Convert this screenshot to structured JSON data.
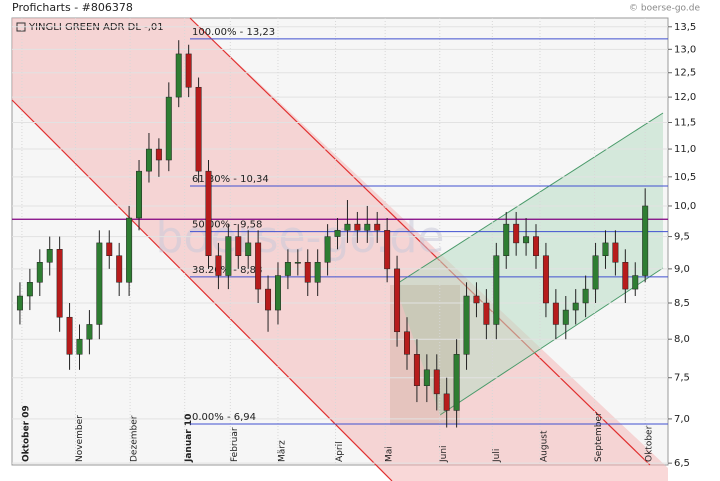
{
  "chart_data": {
    "type": "candlestick",
    "title": "Proficharts - #806378",
    "source": "© boerse-go.de",
    "instrument": "YINGLI GREEN ADR   DL -,01",
    "watermark": "boerse-go.de",
    "log_scale": true,
    "up_color": "#2e7d32",
    "down_color": "#b71c1c",
    "x": [
      0,
      1,
      2,
      3,
      4,
      5,
      6,
      7,
      8,
      9,
      10,
      11,
      12,
      13,
      14,
      15,
      16,
      17,
      18,
      19,
      20,
      21,
      22,
      23,
      24,
      25,
      26,
      27,
      28,
      29,
      30,
      31,
      32,
      33,
      34,
      35,
      36,
      37,
      38,
      39,
      40,
      41,
      42,
      43,
      44,
      45,
      46,
      47,
      48,
      49,
      50,
      51,
      52,
      53,
      54,
      55,
      56,
      57,
      58,
      59,
      60,
      61,
      62,
      63
    ],
    "open": [
      8.4,
      8.6,
      8.8,
      9.1,
      9.3,
      8.3,
      7.8,
      8.0,
      8.2,
      9.4,
      9.2,
      8.8,
      9.8,
      10.6,
      11.0,
      10.8,
      12.0,
      12.9,
      12.2,
      10.6,
      9.2,
      8.9,
      9.5,
      9.2,
      9.4,
      8.7,
      8.4,
      8.9,
      9.1,
      9.1,
      8.8,
      9.1,
      9.5,
      9.6,
      9.7,
      9.6,
      9.7,
      9.6,
      9.0,
      8.1,
      7.8,
      7.4,
      7.6,
      7.3,
      7.1,
      7.8,
      8.6,
      8.5,
      8.2,
      9.2,
      9.7,
      9.4,
      9.5,
      9.2,
      8.5,
      8.2,
      8.4,
      8.5,
      8.7,
      9.2,
      9.4,
      9.1,
      8.7,
      8.9
    ],
    "high": [
      8.8,
      9.0,
      9.3,
      9.5,
      9.5,
      8.5,
      8.2,
      8.4,
      9.6,
      9.6,
      9.4,
      10.0,
      10.8,
      11.3,
      11.2,
      12.3,
      13.2,
      13.1,
      12.4,
      10.8,
      9.4,
      9.7,
      9.7,
      9.6,
      9.6,
      8.9,
      9.1,
      9.3,
      9.3,
      9.3,
      9.3,
      9.7,
      9.8,
      10.1,
      9.9,
      10.0,
      9.9,
      9.8,
      9.2,
      8.3,
      8.0,
      7.8,
      7.8,
      7.5,
      8.0,
      8.8,
      8.8,
      8.7,
      9.4,
      9.9,
      9.9,
      9.8,
      9.7,
      9.4,
      8.7,
      8.6,
      8.7,
      8.9,
      9.4,
      9.6,
      9.6,
      9.3,
      9.1,
      10.3
    ],
    "low": [
      8.2,
      8.4,
      8.6,
      8.9,
      8.1,
      7.6,
      7.6,
      7.8,
      8.0,
      9.0,
      8.6,
      8.6,
      9.6,
      10.4,
      10.5,
      10.6,
      11.8,
      12.0,
      10.4,
      9.0,
      8.7,
      8.7,
      9.0,
      9.0,
      8.5,
      8.1,
      8.2,
      8.7,
      8.9,
      8.6,
      8.6,
      8.9,
      9.3,
      9.4,
      9.4,
      9.4,
      9.4,
      8.8,
      7.9,
      7.6,
      7.2,
      7.2,
      7.1,
      6.9,
      6.9,
      7.6,
      8.3,
      8.0,
      8.0,
      9.0,
      9.2,
      9.2,
      9.0,
      8.3,
      8.0,
      8.0,
      8.2,
      8.3,
      8.5,
      9.0,
      8.9,
      8.5,
      8.6,
      8.8
    ],
    "close": [
      8.6,
      8.8,
      9.1,
      9.3,
      8.3,
      7.8,
      8.0,
      8.2,
      9.4,
      9.2,
      8.8,
      9.8,
      10.6,
      11.0,
      10.8,
      12.0,
      12.9,
      12.2,
      10.6,
      9.2,
      8.9,
      9.5,
      9.2,
      9.4,
      8.7,
      8.4,
      8.9,
      9.1,
      9.1,
      8.8,
      9.1,
      9.5,
      9.6,
      9.7,
      9.6,
      9.7,
      9.6,
      9.0,
      8.1,
      7.8,
      7.4,
      7.6,
      7.3,
      7.1,
      7.8,
      8.6,
      8.5,
      8.2,
      9.2,
      9.7,
      9.4,
      9.5,
      9.2,
      8.5,
      8.2,
      8.4,
      8.5,
      8.7,
      9.2,
      9.4,
      9.1,
      8.7,
      8.9,
      10.0
    ],
    "xlim": [
      -0.8,
      65.3
    ],
    "xticks": [
      {
        "value": 0.2,
        "label": "Oktober 09"
      },
      {
        "value": 5.6,
        "label": "November"
      },
      {
        "value": 11.1,
        "label": "Dezember"
      },
      {
        "value": 16.6,
        "label": "Januar 10"
      },
      {
        "value": 21.2,
        "label": "Februar"
      },
      {
        "value": 26.0,
        "label": "März"
      },
      {
        "value": 31.8,
        "label": "April"
      },
      {
        "value": 36.8,
        "label": "Mai"
      },
      {
        "value": 42.3,
        "label": "Juni"
      },
      {
        "value": 47.6,
        "label": "Juli"
      },
      {
        "value": 52.4,
        "label": "August"
      },
      {
        "value": 57.9,
        "label": "September"
      },
      {
        "value": 63.0,
        "label": "Oktober"
      }
    ],
    "ylim": [
      6.48,
      13.7
    ],
    "yticks": [
      {
        "value": 6.5,
        "label": "6,5"
      },
      {
        "value": 7.0,
        "label": "7,0"
      },
      {
        "value": 7.5,
        "label": "7,5"
      },
      {
        "value": 8.0,
        "label": "8,0"
      },
      {
        "value": 8.5,
        "label": "8,5"
      },
      {
        "value": 9.0,
        "label": "9,0"
      },
      {
        "value": 9.5,
        "label": "9,5"
      },
      {
        "value": 10.0,
        "label": "10,0"
      },
      {
        "value": 10.5,
        "label": "10,5"
      },
      {
        "value": 11.0,
        "label": "11,0"
      },
      {
        "value": 11.5,
        "label": "11,5"
      },
      {
        "value": 12.0,
        "label": "12,0"
      },
      {
        "value": 12.5,
        "label": "12,5"
      },
      {
        "value": 13.0,
        "label": "13,0"
      },
      {
        "value": 13.5,
        "label": "13,5"
      }
    ],
    "fib_levels": [
      {
        "value": 13.23,
        "label": "100.00% - 13,23"
      },
      {
        "value": 10.34,
        "label": "61.80% - 10,34"
      },
      {
        "value": 9.58,
        "label": "50.00% - 9,58"
      },
      {
        "value": 8.88,
        "label": "38.20% - 8,88"
      },
      {
        "value": 6.94,
        "label": "0.00% - 6,94"
      }
    ],
    "reference_line": 9.78,
    "grid": true
  }
}
